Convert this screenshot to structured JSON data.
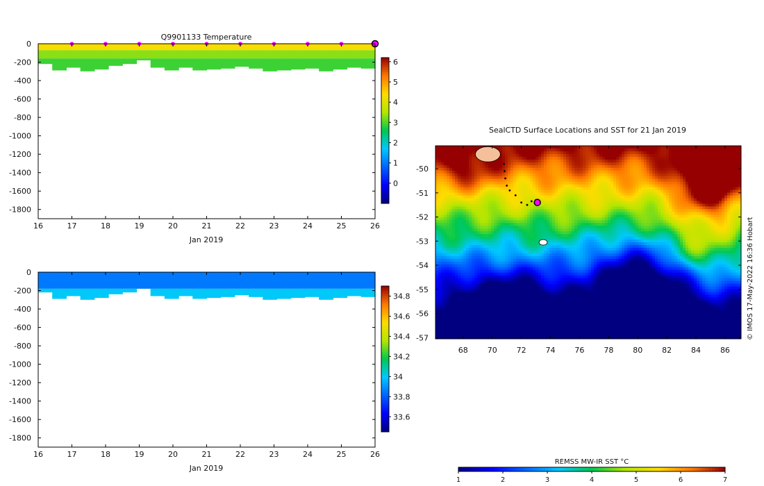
{
  "chart_data": [
    {
      "type": "heatmap",
      "title": "Q9901133  Temperature",
      "xlabel": "Jan 2019",
      "xticks": [
        "16",
        "17",
        "18",
        "19",
        "20",
        "21",
        "22",
        "23",
        "24",
        "25",
        "26"
      ],
      "xlim": [
        16,
        26
      ],
      "ylim": [
        -1900,
        0
      ],
      "yticks": [
        "0",
        "-200",
        "-400",
        "-600",
        "-800",
        "-1000",
        "-1200",
        "-1400",
        "-1600",
        "-1800"
      ],
      "colorbar_ticks": [
        "0",
        "1",
        "2",
        "3",
        "4",
        "5",
        "6"
      ],
      "colorbar_range": [
        -1,
        6.2
      ],
      "profile_days": [
        17,
        18,
        19,
        20,
        21,
        22,
        23,
        24,
        25,
        26
      ],
      "profile_depths_m": [
        220,
        290,
        260,
        300,
        280,
        240,
        220,
        180,
        260,
        290,
        260,
        290,
        280,
        270,
        250,
        270,
        300,
        290,
        280,
        270,
        300,
        280,
        260,
        270
      ],
      "layers": [
        {
          "from_m": 0,
          "to_m": 70,
          "value": 4.3
        },
        {
          "from_m": 70,
          "to_m": 160,
          "value": 3.3
        },
        {
          "from_m": 160,
          "to_m": 320,
          "value": 2.9
        }
      ],
      "markers": {
        "color": "#ff00ff",
        "latest_day": 26
      }
    },
    {
      "type": "heatmap",
      "title": "",
      "xlabel": "Jan 2019",
      "xticks": [
        "16",
        "17",
        "18",
        "19",
        "20",
        "21",
        "22",
        "23",
        "24",
        "25",
        "26"
      ],
      "xlim": [
        16,
        26
      ],
      "ylim": [
        -1900,
        0
      ],
      "yticks": [
        "0",
        "-200",
        "-400",
        "-600",
        "-800",
        "-1000",
        "-1200",
        "-1400",
        "-1600",
        "-1800"
      ],
      "colorbar_ticks": [
        "33.6",
        "33.8",
        "34",
        "34.2",
        "34.4",
        "34.6",
        "34.8"
      ],
      "colorbar_range": [
        33.45,
        34.9
      ],
      "profile_depths_m": [
        220,
        290,
        260,
        300,
        280,
        240,
        220,
        180,
        260,
        290,
        260,
        290,
        280,
        270,
        250,
        270,
        300,
        290,
        280,
        270,
        300,
        280,
        260,
        270
      ],
      "layers": [
        {
          "from_m": 0,
          "to_m": 180,
          "value": 33.85
        },
        {
          "from_m": 180,
          "to_m": 320,
          "value": 34.0
        }
      ]
    },
    {
      "type": "map",
      "title": "SealCTD Surface Locations and SST for 21 Jan 2019",
      "xticks": [
        "68",
        "70",
        "72",
        "74",
        "76",
        "78",
        "80",
        "82",
        "84",
        "86"
      ],
      "yticks": [
        "-50",
        "-51",
        "-52",
        "-53",
        "-54",
        "-55",
        "-56",
        "-57"
      ],
      "lon_range": [
        66.1,
        87.1
      ],
      "lat_range": [
        -57.05,
        -49.05
      ],
      "sst_colorbar": {
        "label": "REMSS MW-IR SST °C",
        "ticks": [
          "1",
          "2",
          "3",
          "4",
          "5",
          "6",
          "7"
        ],
        "range": [
          1,
          7
        ]
      },
      "track_points": [
        [
          70.8,
          -49.8
        ],
        [
          70.85,
          -50.1
        ],
        [
          70.9,
          -50.4
        ],
        [
          71.0,
          -50.7
        ],
        [
          71.2,
          -50.9
        ],
        [
          71.6,
          -51.1
        ],
        [
          72.0,
          -51.4
        ],
        [
          72.4,
          -51.5
        ],
        [
          72.7,
          -51.35
        ],
        [
          73.0,
          -51.3
        ],
        [
          73.1,
          -51.4
        ]
      ],
      "current_location": [
        73.1,
        -51.4
      ],
      "credit": "© IMOS 17-May-2022 16:36 Hobart"
    }
  ]
}
